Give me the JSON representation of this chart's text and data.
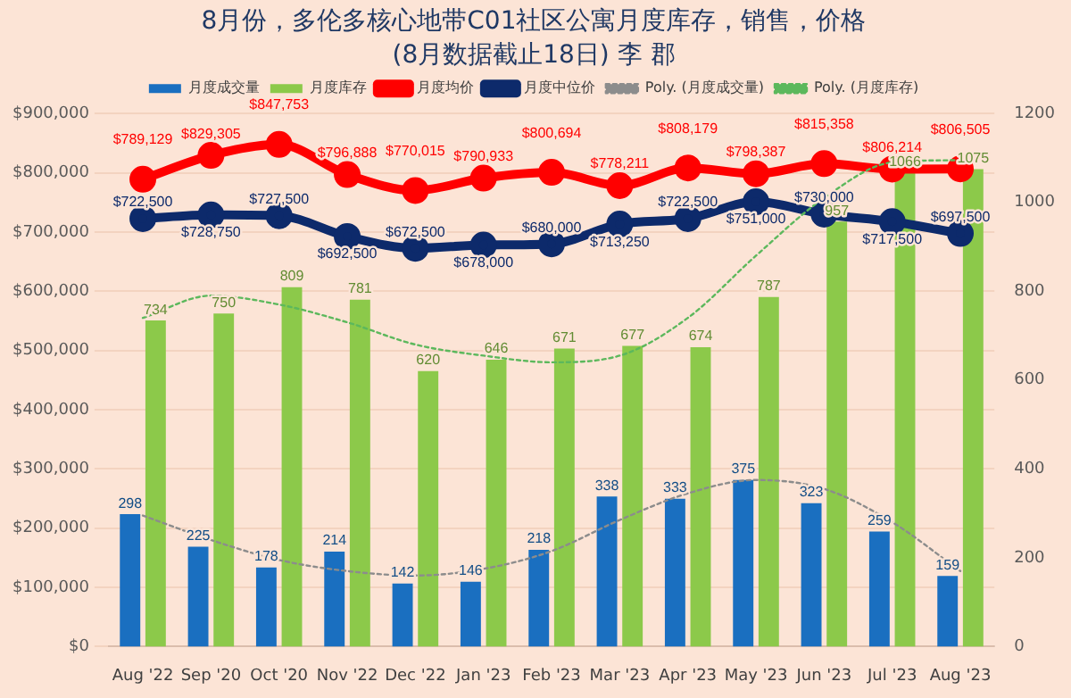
{
  "chart_data": {
    "type": "bar",
    "title": "8月份，多伦多核心地带C01社区公寓月度库存，销售，价格",
    "subtitle": "(8月数据截止18日) 李 郡",
    "categories": [
      "Aug '22",
      "Sep '20",
      "Oct '20",
      "Nov '22",
      "Dec '22",
      "Jan '23",
      "Feb '23",
      "Mar '23",
      "Apr '23",
      "May '23",
      "Jun '23",
      "Jul '23",
      "Aug '23"
    ],
    "series": [
      {
        "name": "月度成交量",
        "axis": "y2",
        "color": "#1a6fc0",
        "values": [
          298,
          225,
          178,
          214,
          142,
          146,
          218,
          338,
          333,
          375,
          323,
          259,
          159
        ],
        "value_labels": [
          "298",
          "225",
          "178",
          "214",
          "142",
          "146",
          "218",
          "338",
          "333",
          "375",
          "323",
          "259",
          "159"
        ]
      },
      {
        "name": "月度库存",
        "axis": "y2",
        "color": "#8cc94a",
        "values": [
          734,
          750,
          809,
          781,
          620,
          646,
          671,
          677,
          674,
          787,
          957,
          1066,
          1075
        ],
        "value_labels": [
          "734",
          "750",
          "809",
          "781",
          "620",
          "646",
          "671",
          "677",
          "674",
          "787",
          "957",
          "1066",
          "1075"
        ]
      },
      {
        "name": "月度均价",
        "type": "line",
        "marker": "circle",
        "color": "#ff0000",
        "values": [
          789129,
          829305,
          847753,
          796888,
          770015,
          790933,
          800694,
          778211,
          808179,
          798387,
          815358,
          806214,
          806505
        ],
        "value_labels": [
          "$789,129",
          "$829,305",
          "$847,753",
          "$796,888",
          "$770,015",
          "$790,933",
          "$800,694",
          "$778,211",
          "$808,179",
          "$798,387",
          "$815,358",
          "$806,214",
          "$806,505"
        ]
      },
      {
        "name": "月度中位价",
        "type": "line",
        "marker": "circle",
        "color": "#0d2a6b",
        "values": [
          722500,
          728750,
          727500,
          692500,
          672500,
          678000,
          680000,
          713250,
          722500,
          751000,
          730000,
          717500,
          697500
        ],
        "value_labels": [
          "$722,500",
          "$728,750",
          "$727,500",
          "$692,500",
          "$672,500",
          "$678,000",
          "$680,000",
          "$713,250",
          "$722,500",
          "$751,000",
          "$730,000",
          "$717,500",
          "$697,500"
        ]
      },
      {
        "name": "Poly. (月度成交量)",
        "type": "line",
        "axis": "y2",
        "marker": "none",
        "line_style": "dotted",
        "color": "#8c8c8c",
        "values": [
          295,
          240,
          195,
          170,
          160,
          175,
          215,
          285,
          345,
          375,
          355,
          280,
          170
        ]
      },
      {
        "name": "Poly. (月度库存)",
        "type": "line",
        "axis": "y2",
        "marker": "none",
        "line_style": "dotted",
        "color": "#5cb85c",
        "values": [
          740,
          790,
          770,
          730,
          680,
          655,
          640,
          655,
          740,
          880,
          1010,
          1090,
          1095
        ]
      }
    ],
    "ylim": [
      0,
      900000
    ],
    "yticks": [
      {
        "value": 0,
        "label": "$0"
      },
      {
        "value": 100000,
        "label": "$100,000"
      },
      {
        "value": 200000,
        "label": "$200,000"
      },
      {
        "value": 300000,
        "label": "$300,000"
      },
      {
        "value": 400000,
        "label": "$400,000"
      },
      {
        "value": 500000,
        "label": "$500,000"
      },
      {
        "value": 600000,
        "label": "$600,000"
      },
      {
        "value": 700000,
        "label": "$700,000"
      },
      {
        "value": 800000,
        "label": "$800,000"
      },
      {
        "value": 900000,
        "label": "$900,000"
      }
    ],
    "y2lim": [
      0,
      1200
    ],
    "y2ticks": [
      0,
      200,
      400,
      600,
      800,
      1000,
      1200
    ],
    "grid": "y",
    "legend": "top"
  }
}
